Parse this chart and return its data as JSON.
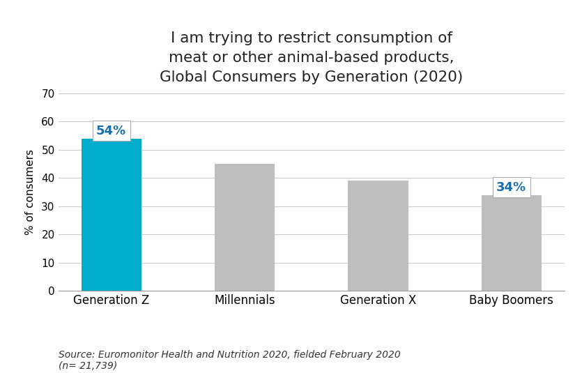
{
  "categories": [
    "Generation Z",
    "Millennials",
    "Generation X",
    "Baby Boomers"
  ],
  "values": [
    54,
    45,
    39,
    34
  ],
  "bar_colors": [
    "#00AECC",
    "#BEBEBE",
    "#BEBEBE",
    "#BEBEBE"
  ],
  "highlighted_bars": [
    0,
    3
  ],
  "highlighted_labels": [
    "54%",
    "34%"
  ],
  "label_color": "#1B6FA8",
  "title_line1": "I am trying to restrict consumption of",
  "title_line2": "meat or other animal-based products,",
  "title_line3": "Global Consumers by Generation (2020)",
  "ylabel": "% of consumers",
  "ylim": [
    0,
    70
  ],
  "yticks": [
    0,
    10,
    20,
    30,
    40,
    50,
    60,
    70
  ],
  "source_text": "Source: Euromonitor Health and Nutrition 2020, fielded February 2020\n(n= 21,739)",
  "title_fontsize": 15.5,
  "ylabel_fontsize": 11,
  "tick_fontsize": 11,
  "source_fontsize": 10,
  "background_color": "#FFFFFF",
  "grid_color": "#CCCCCC",
  "bar_width": 0.45
}
